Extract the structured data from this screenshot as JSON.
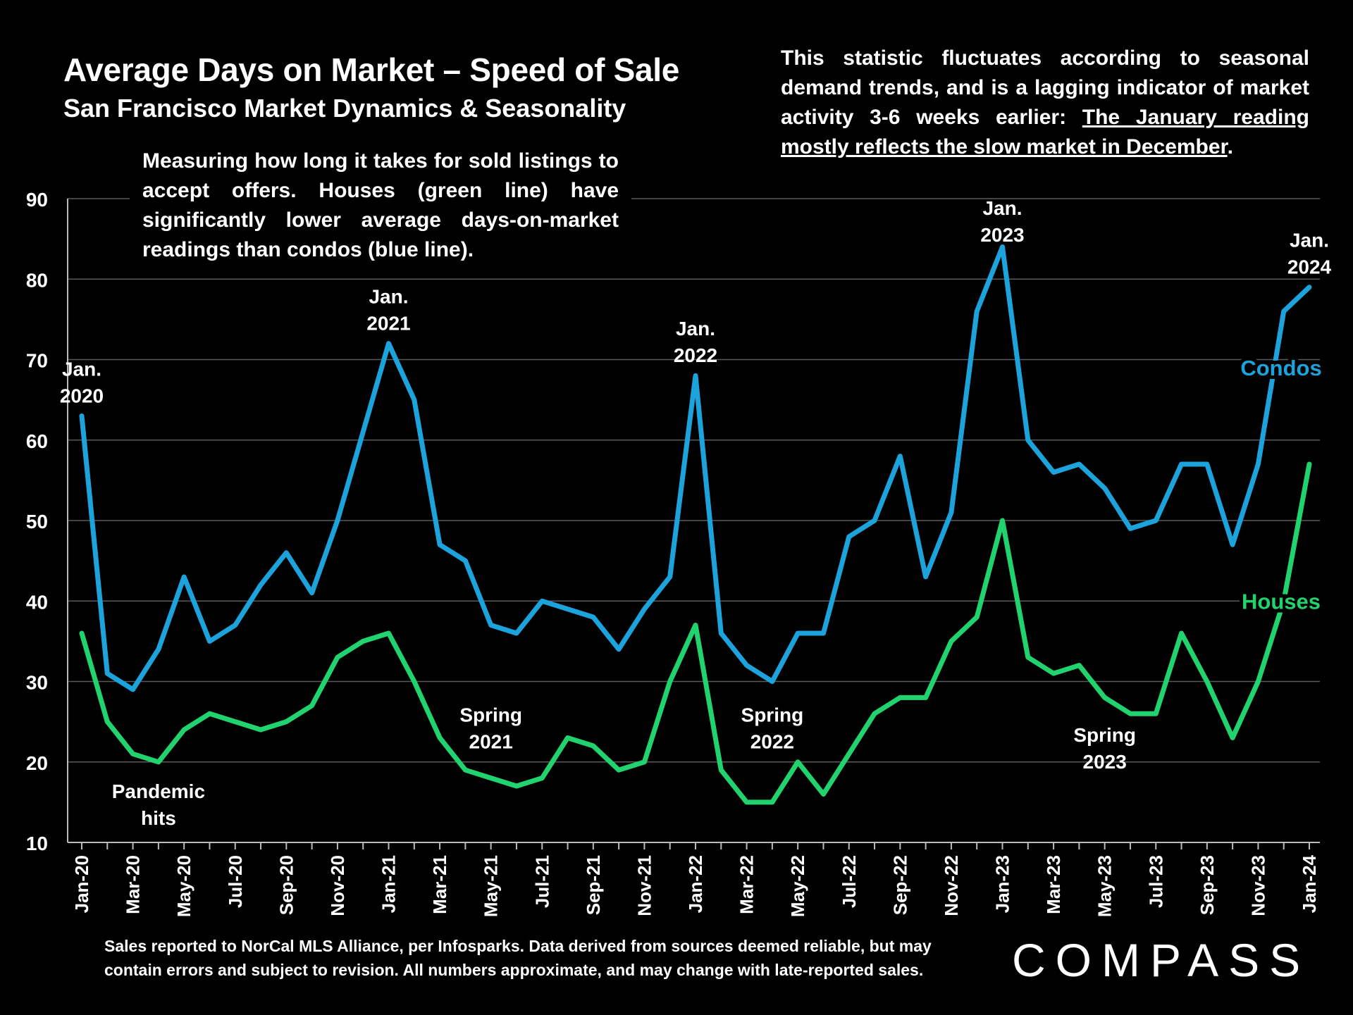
{
  "title": "Average Days on Market – Speed of Sale",
  "subtitle": "San Francisco Market Dynamics & Seasonality",
  "description": "Measuring how long it takes for sold listings to accept offers. Houses (green line) have significantly lower average days-on-market readings than condos (blue line).",
  "note": {
    "text": "This statistic fluctuates according to seasonal demand trends, and is a lagging indicator of market activity 3-6 weeks earlier: ",
    "underlined": "The January reading mostly reflects the slow market in December",
    "end": "."
  },
  "footer": "Sales reported to NorCal MLS Alliance, per Infosparks. Data derived from sources deemed reliable, but may contain errors and subject to revision. All numbers approximate, and may change with late-reported sales.",
  "logo": "COMPASS",
  "chart_data": {
    "type": "line",
    "ylim": [
      10,
      90
    ],
    "yticks": [
      10,
      20,
      30,
      40,
      50,
      60,
      70,
      80,
      90
    ],
    "grid": true,
    "x": [
      "Jan-20",
      "Feb-20",
      "Mar-20",
      "Apr-20",
      "May-20",
      "Jun-20",
      "Jul-20",
      "Aug-20",
      "Sep-20",
      "Oct-20",
      "Nov-20",
      "Dec-20",
      "Jan-21",
      "Feb-21",
      "Mar-21",
      "Apr-21",
      "May-21",
      "Jun-21",
      "Jul-21",
      "Aug-21",
      "Sep-21",
      "Oct-21",
      "Nov-21",
      "Dec-21",
      "Jan-22",
      "Feb-22",
      "Mar-22",
      "Apr-22",
      "May-22",
      "Jun-22",
      "Jul-22",
      "Aug-22",
      "Sep-22",
      "Oct-22",
      "Nov-22",
      "Dec-22",
      "Jan-23",
      "Feb-23",
      "Mar-23",
      "Apr-23",
      "May-23",
      "Jun-23",
      "Jul-23",
      "Aug-23",
      "Sep-23",
      "Oct-23",
      "Nov-23",
      "Dec-23",
      "Jan-24"
    ],
    "series": [
      {
        "name": "Condos",
        "color": "#1ca3dc",
        "values": [
          63,
          31,
          29,
          34,
          43,
          35,
          37,
          42,
          46,
          41,
          50,
          61,
          72,
          65,
          47,
          45,
          37,
          36,
          40,
          39,
          38,
          34,
          39,
          43,
          68,
          36,
          32,
          30,
          36,
          36,
          48,
          50,
          58,
          43,
          51,
          76,
          84,
          60,
          56,
          57,
          54,
          49,
          50,
          57,
          57,
          47,
          57,
          76,
          79
        ]
      },
      {
        "name": "Houses",
        "color": "#21d36e",
        "values": [
          36,
          25,
          21,
          20,
          24,
          26,
          25,
          24,
          25,
          27,
          33,
          35,
          36,
          30,
          23,
          19,
          18,
          17,
          18,
          23,
          22,
          19,
          20,
          30,
          37,
          19,
          15,
          15,
          20,
          16,
          21,
          26,
          28,
          28,
          35,
          38,
          50,
          33,
          31,
          32,
          28,
          26,
          26,
          36,
          30,
          23,
          30,
          40,
          57
        ]
      }
    ],
    "annotations": [
      {
        "text": [
          "Jan.",
          "2020"
        ],
        "x": "Jan-20",
        "y": 68
      },
      {
        "text": [
          "Jan.",
          "2021"
        ],
        "x": "Jan-21",
        "y": 77
      },
      {
        "text": [
          "Jan.",
          "2022"
        ],
        "x": "Jan-22",
        "y": 73
      },
      {
        "text": [
          "Jan.",
          "2023"
        ],
        "x": "Jan-23",
        "y": 88
      },
      {
        "text": [
          "Jan.",
          "2024"
        ],
        "x": "Jan-24",
        "y": 84
      },
      {
        "text": [
          "Pandemic",
          "hits"
        ],
        "x": "Apr-20",
        "y": 15.5
      },
      {
        "text": [
          "Spring",
          "2021"
        ],
        "x": "May-21",
        "y": 25
      },
      {
        "text": [
          "Spring",
          "2022"
        ],
        "x": "Apr-22",
        "y": 25
      },
      {
        "text": [
          "Spring",
          "2023"
        ],
        "x": "May-23",
        "y": 22.5
      }
    ],
    "series_labels": [
      {
        "text": "Condos",
        "color": "#1ca3dc",
        "x": "Jan-24",
        "y": 69
      },
      {
        "text": "Houses",
        "color": "#21d36e",
        "x": "Jan-24",
        "y": 40
      }
    ]
  }
}
